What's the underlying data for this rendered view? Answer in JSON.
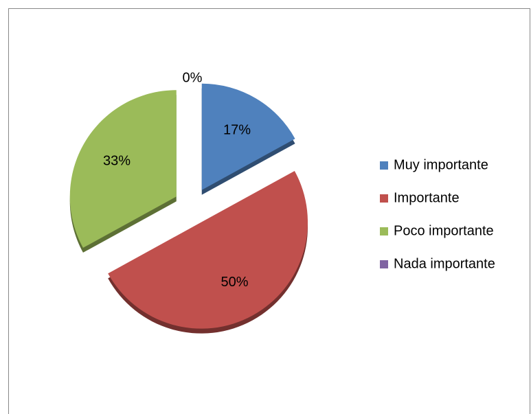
{
  "chart_data": {
    "type": "pie",
    "categories": [
      "Muy importante",
      "Importante",
      "Poco importante",
      "Nada importante"
    ],
    "values": [
      17,
      50,
      33,
      0
    ],
    "value_labels": [
      "17%",
      "50%",
      "33%",
      "0%"
    ],
    "colors": [
      "#4f81bd",
      "#c0504d",
      "#9bbb59",
      "#8064a2"
    ],
    "legend": "right"
  }
}
